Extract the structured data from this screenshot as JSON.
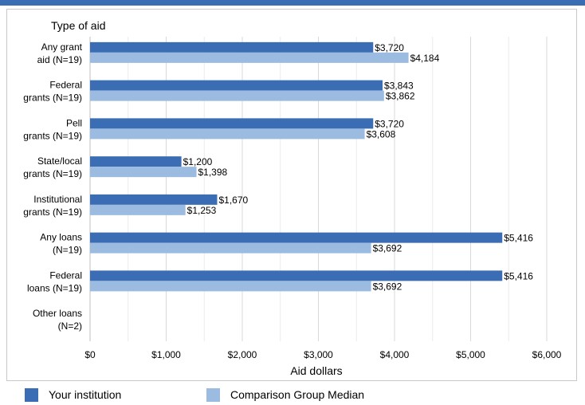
{
  "chart_data": {
    "type": "bar",
    "orientation": "horizontal",
    "y_axis_title": "Type of aid",
    "xlabel": "Aid dollars",
    "xlim": [
      0,
      6000
    ],
    "x_ticks": [
      "$0",
      "$1,000",
      "$2,000",
      "$3,000",
      "$4,000",
      "$5,000",
      "$6,000"
    ],
    "grid": true,
    "legend_position": "bottom",
    "categories": [
      [
        "Any grant",
        "aid (N=19)"
      ],
      [
        "Federal",
        "grants (N=19)"
      ],
      [
        "Pell",
        "grants (N=19)"
      ],
      [
        "State/local",
        "grants (N=19)"
      ],
      [
        "Institutional",
        "grants (N=19)"
      ],
      [
        "Any loans",
        "(N=19)"
      ],
      [
        "Federal",
        "loans (N=19)"
      ],
      [
        "Other loans",
        "(N=2)"
      ]
    ],
    "series": [
      {
        "name": "Your institution",
        "color": "#3b6db4",
        "values": [
          3720,
          3843,
          3720,
          1200,
          1670,
          5416,
          5416,
          null
        ],
        "labels": [
          "$3,720",
          "$3,843",
          "$3,720",
          "$1,200",
          "$1,670",
          "$5,416",
          "$5,416",
          ""
        ]
      },
      {
        "name": "Comparison Group Median",
        "color": "#9cbbe0",
        "values": [
          4184,
          3862,
          3608,
          1398,
          1253,
          3692,
          3692,
          null
        ],
        "labels": [
          "$4,184",
          "$3,862",
          "$3,608",
          "$1,398",
          "$1,253",
          "$3,692",
          "$3,692",
          ""
        ]
      }
    ]
  }
}
